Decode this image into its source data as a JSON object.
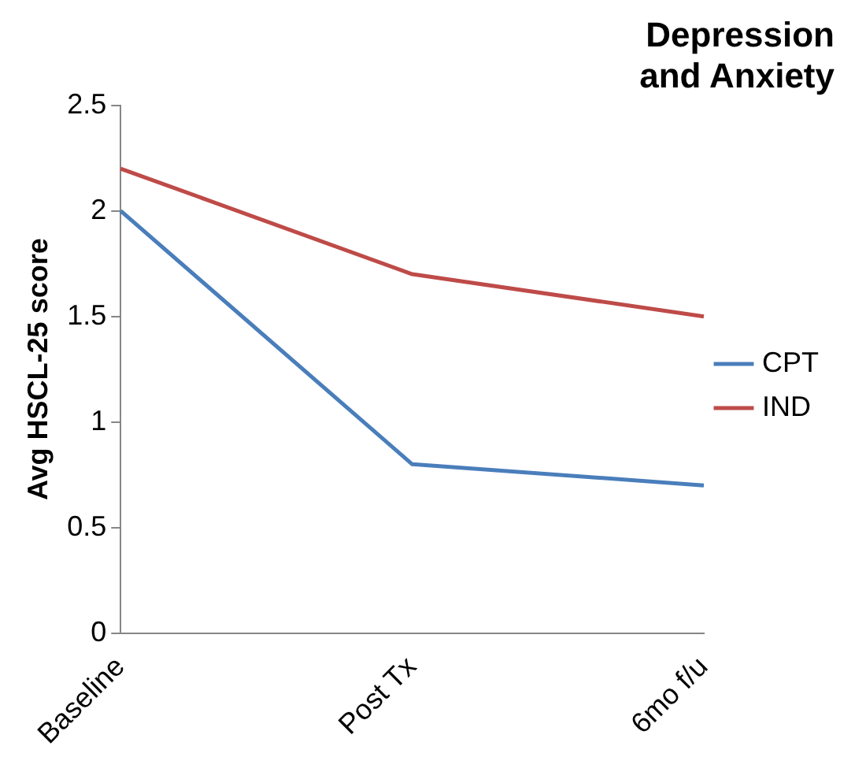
{
  "chart_data": {
    "type": "line",
    "title": "Depression and Anxiety",
    "ylabel": "Avg HSCL-25 score",
    "categories": [
      "Baseline",
      "Post Tx",
      "6mo f/u"
    ],
    "series": [
      {
        "name": "CPT",
        "color": "#4a7ebb",
        "values": [
          2.0,
          0.8,
          0.7
        ]
      },
      {
        "name": "IND",
        "color": "#be4b48",
        "values": [
          2.2,
          1.7,
          1.5
        ]
      }
    ],
    "ylim": [
      0,
      2.5
    ],
    "yticks": [
      0,
      0.5,
      1,
      1.5,
      2,
      2.5
    ],
    "grid": false,
    "legend": "right",
    "marker": "none",
    "line_style": "solid"
  }
}
